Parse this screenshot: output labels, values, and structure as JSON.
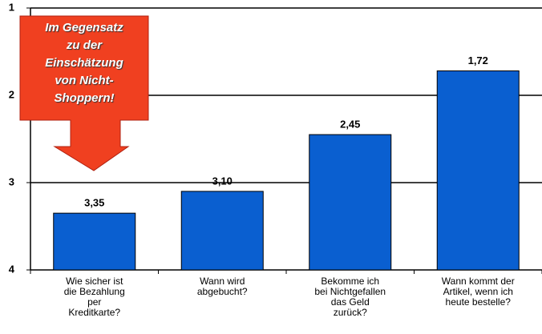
{
  "chart_data": {
    "type": "bar",
    "categories": [
      "Wie sicher ist\ndie Bezahlung\nper\nKreditkarte?",
      "Wann wird\nabgebucht?",
      "Bekomme ich\nbei Nichtgefallen\ndas Geld\nzurück?",
      "Wann kommt der\nArtikel, wenn ich\nheute bestelle?"
    ],
    "values": [
      3.35,
      3.1,
      2.45,
      1.72
    ],
    "value_labels": [
      "3,35",
      "3,10",
      "2,45",
      "1,72"
    ],
    "color": "#0a5fd0",
    "ylim": [
      4,
      1
    ],
    "yticks": [
      1,
      2,
      3,
      4
    ],
    "grid": true,
    "annotation": "Im Gegensatz\nzu der\nEinschätzung\nvon Nicht-\nShoppern!"
  }
}
